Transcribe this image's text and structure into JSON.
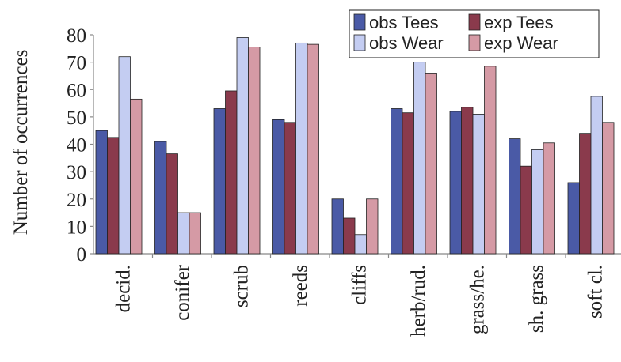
{
  "chart_data": {
    "type": "bar",
    "ylabel": "Number of occurrences",
    "ylim": [
      0,
      80
    ],
    "yticks": [
      0,
      10,
      20,
      30,
      40,
      50,
      60,
      70,
      80
    ],
    "categories": [
      "decid.",
      "conifer",
      "scrub",
      "reeds",
      "cliffs",
      "herb/rud.",
      "grass/he.",
      "sh. grass",
      "soft cl."
    ],
    "series": [
      {
        "name": "obs Tees",
        "color": "#4a5aa6",
        "values": [
          45,
          41,
          53,
          49,
          20,
          53,
          52,
          42,
          26
        ]
      },
      {
        "name": "exp Tees",
        "color": "#8a3a4c",
        "values": [
          42.5,
          36.5,
          59.5,
          48,
          13,
          51.5,
          53.5,
          32,
          44
        ]
      },
      {
        "name": "obs Wear",
        "color": "#c4cdf2",
        "values": [
          72,
          15,
          79,
          77,
          7,
          70,
          51,
          38,
          57.5
        ]
      },
      {
        "name": "exp Wear",
        "color": "#d59aa5",
        "values": [
          56.5,
          15,
          75.5,
          76.5,
          20,
          66,
          68.5,
          40.5,
          48
        ]
      }
    ],
    "legend_position": "top-right",
    "grid": false
  }
}
